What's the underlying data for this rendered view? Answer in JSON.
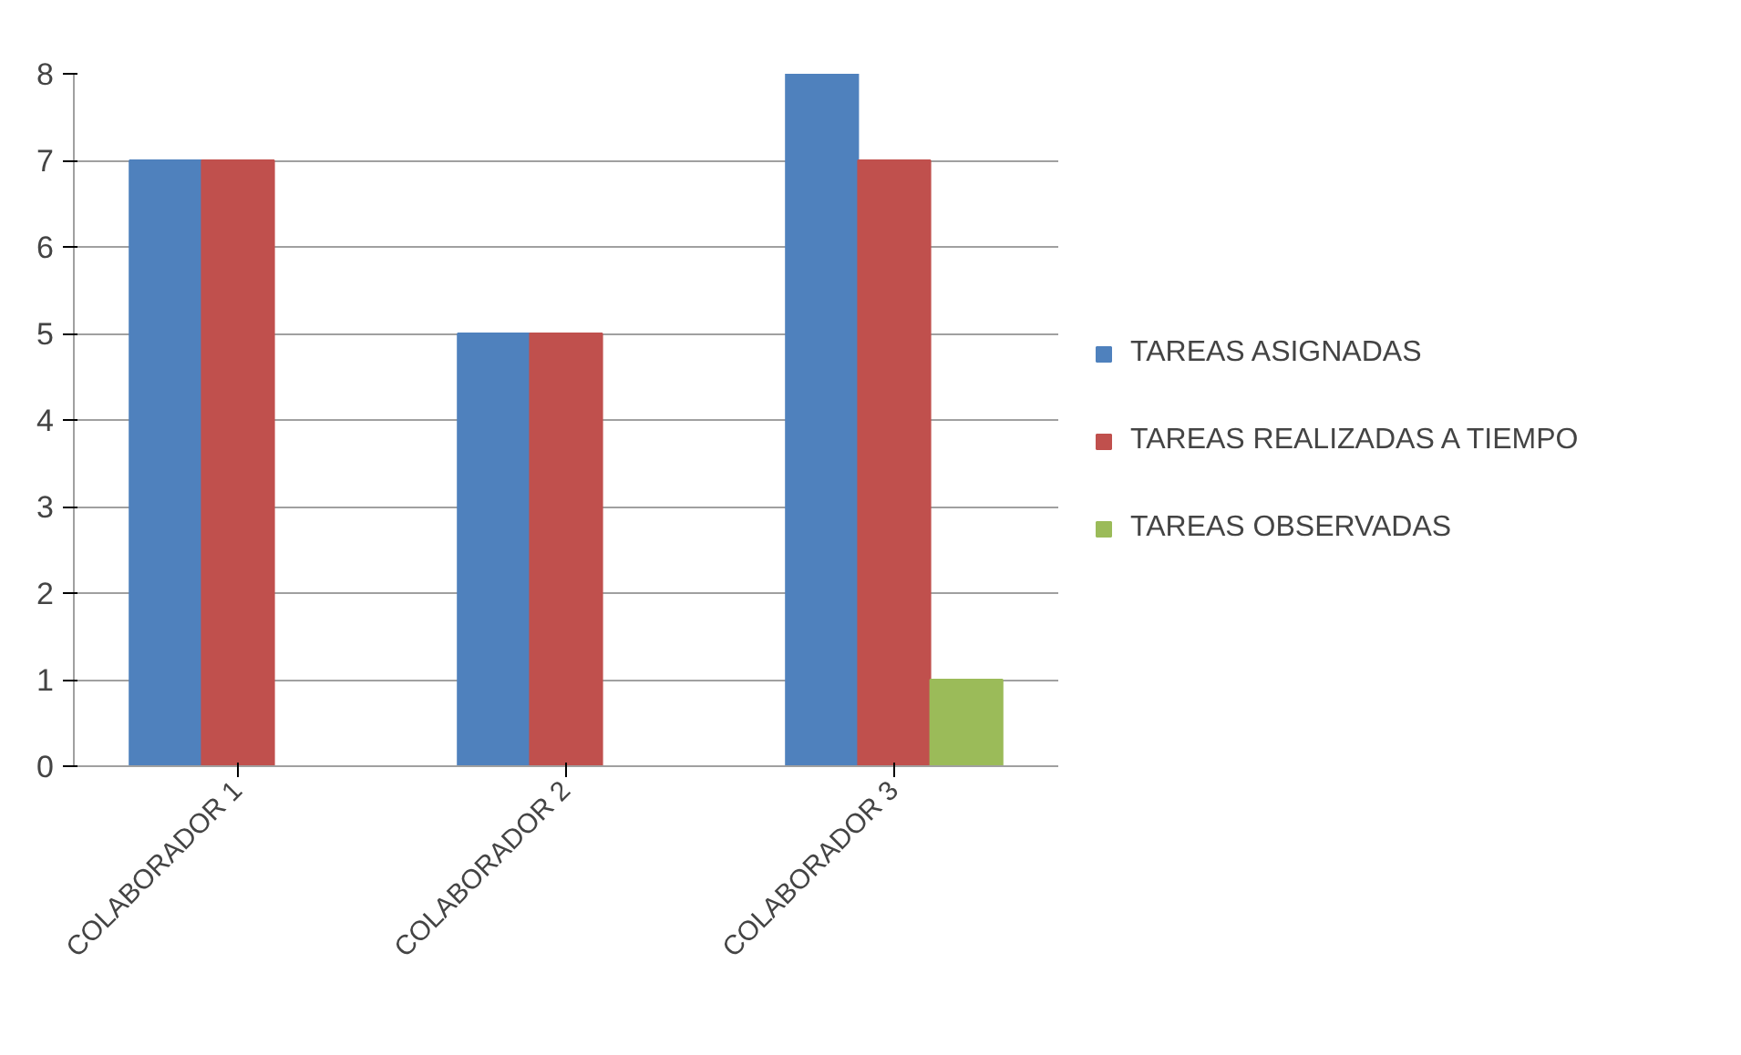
{
  "chart_data": {
    "type": "bar",
    "categories": [
      "COLABORADOR 1",
      "COLABORADOR 2",
      "COLABORADOR 3"
    ],
    "series": [
      {
        "name": "TAREAS ASIGNADAS",
        "color": "#4f81bd",
        "values": [
          7,
          5,
          8
        ]
      },
      {
        "name": "TAREAS REALIZADAS A TIEMPO",
        "color": "#c0504d",
        "values": [
          7,
          5,
          7
        ]
      },
      {
        "name": "TAREAS OBSERVADAS",
        "color": "#9bbb59",
        "values": [
          0,
          0,
          1
        ]
      }
    ],
    "ylim": [
      0,
      8
    ],
    "yticks": [
      0,
      1,
      2,
      3,
      4,
      5,
      6,
      7,
      8
    ],
    "grid": "y",
    "legend": "right"
  }
}
